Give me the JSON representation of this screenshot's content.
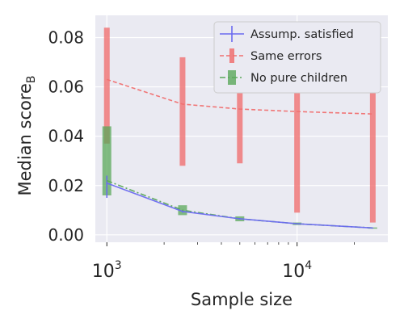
{
  "chart_data": {
    "type": "line",
    "xlabel": "Sample size",
    "ylabel": "Median score",
    "ylabel_subscript": "B",
    "xscale": "log",
    "xlim": [
      870,
      30000
    ],
    "ylim": [
      -0.003,
      0.089
    ],
    "x_ticks": [
      {
        "value": 1000,
        "base": "10",
        "exp": "3"
      },
      {
        "value": 10000,
        "base": "10",
        "exp": "4"
      }
    ],
    "y_ticks": [
      {
        "value": 0.0,
        "label": "0.00"
      },
      {
        "value": 0.02,
        "label": "0.02"
      },
      {
        "value": 0.04,
        "label": "0.04"
      },
      {
        "value": 0.06,
        "label": "0.06"
      },
      {
        "value": 0.08,
        "label": "0.08"
      }
    ],
    "grid": true,
    "legend_position": "upper-right",
    "series": [
      {
        "name": "Assump. satisfied",
        "color": "#6a6af0",
        "style": "solid",
        "x": [
          1000,
          2500,
          5000,
          10000,
          25000
        ],
        "y": [
          0.021,
          0.0095,
          0.0065,
          0.0045,
          0.0028
        ],
        "lower": [
          0.015,
          0.009,
          0.0062,
          0.0043,
          0.0027
        ],
        "upper": [
          0.024,
          0.01,
          0.0068,
          0.0047,
          0.0029
        ]
      },
      {
        "name": "Same errors",
        "color": "#f07070",
        "style": "dashed",
        "x": [
          1000,
          2500,
          5000,
          10000,
          25000
        ],
        "y": [
          0.063,
          0.053,
          0.051,
          0.05,
          0.049
        ],
        "lower": [
          0.037,
          0.028,
          0.029,
          0.009,
          0.005
        ],
        "upper": [
          0.084,
          0.072,
          0.069,
          0.067,
          0.068
        ]
      },
      {
        "name": "No pure children",
        "color": "#5aa85a",
        "style": "dashdot",
        "x": [
          1000,
          2500,
          5000,
          10000,
          25000
        ],
        "y": [
          0.022,
          0.01,
          0.0065,
          0.0045,
          0.0028
        ],
        "lower": [
          0.016,
          0.008,
          0.0055,
          0.004,
          0.0025
        ],
        "upper": [
          0.044,
          0.012,
          0.0075,
          0.005,
          0.003
        ]
      }
    ]
  }
}
